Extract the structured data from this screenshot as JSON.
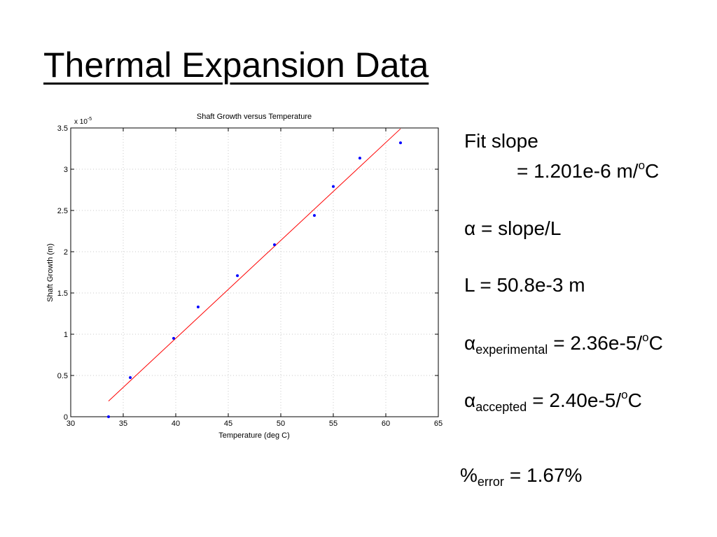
{
  "slide": {
    "title": "Thermal Expansion Data",
    "fit": {
      "label": "Fit slope",
      "value": "= 1.201e-6 m/",
      "sup": "o",
      "unit": "C"
    },
    "alpha_def": "α = slope/L",
    "length": "L = 50.8e-3 m",
    "alpha_exp": {
      "symbol": "α",
      "sub": "experimental",
      "value": "= 2.36e-5/",
      "sup": "o",
      "unit": "C"
    },
    "alpha_acc": {
      "symbol": "α",
      "sub": "accepted",
      "value": "= 2.40e-5/",
      "sup": "o",
      "unit": "C"
    },
    "error": {
      "symbol": "%",
      "sub": "error",
      "value": "= 1.67%"
    }
  },
  "chart_data": {
    "type": "scatter",
    "title": "Shaft Growth versus Temperature",
    "xlabel": "Temperature (deg C)",
    "ylabel": "Shaft Growth (m)",
    "y_multiplier": {
      "base": "x 10",
      "exponent": "-5"
    },
    "series": [
      {
        "color": "#0000ff",
        "x": [
          33.6,
          35.67,
          39.8,
          42.13,
          45.87,
          49.4,
          53.2,
          55.0,
          57.53,
          61.4
        ],
        "values": [
          0,
          0.475,
          0.95,
          1.33,
          1.71,
          2.085,
          2.44,
          2.79,
          3.135,
          3.32
        ]
      }
    ],
    "fit": {
      "color": "#ff0000",
      "x": [
        33.6,
        61.4
      ],
      "values": [
        0.19,
        3.49
      ]
    },
    "xlim": [
      30,
      65
    ],
    "xticks": [
      30,
      35,
      40,
      45,
      50,
      55,
      60,
      65
    ],
    "ylim": [
      0,
      3.5
    ],
    "yticks": [
      0,
      0.5,
      1,
      1.5,
      2,
      2.5,
      3,
      3.5
    ],
    "grid": true
  }
}
